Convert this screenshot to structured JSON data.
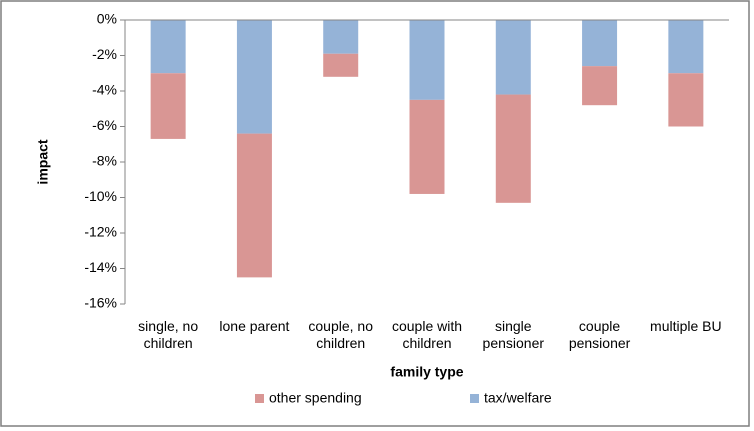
{
  "chart_data": {
    "type": "stacked_bar",
    "categories": [
      "single, no children",
      "lone parent",
      "couple, no children",
      "couple with children",
      "single pensioner",
      "couple pensioner",
      "multiple BU"
    ],
    "series": [
      {
        "name": "tax/welfare",
        "color": "#95b3d7",
        "values": [
          -3.0,
          -6.4,
          -1.9,
          -4.5,
          -4.2,
          -2.6,
          -3.0
        ]
      },
      {
        "name": "other spending",
        "color": "#d99694",
        "values": [
          -3.7,
          -8.1,
          -1.3,
          -5.3,
          -6.1,
          -2.2,
          -3.0
        ]
      }
    ],
    "ylabel": "impact",
    "xlabel": "family type",
    "ylim": [
      -16,
      0
    ],
    "yticks": [
      {
        "value": 0,
        "label": "0%"
      },
      {
        "value": -2,
        "label": "-2%"
      },
      {
        "value": -4,
        "label": "-4%"
      },
      {
        "value": -6,
        "label": "-6%"
      },
      {
        "value": -8,
        "label": "-8%"
      },
      {
        "value": -10,
        "label": "-10%"
      },
      {
        "value": -12,
        "label": "-12%"
      },
      {
        "value": -14,
        "label": "-14%"
      },
      {
        "value": -16,
        "label": "-16%"
      }
    ],
    "grid": false,
    "legend": "bottom"
  }
}
